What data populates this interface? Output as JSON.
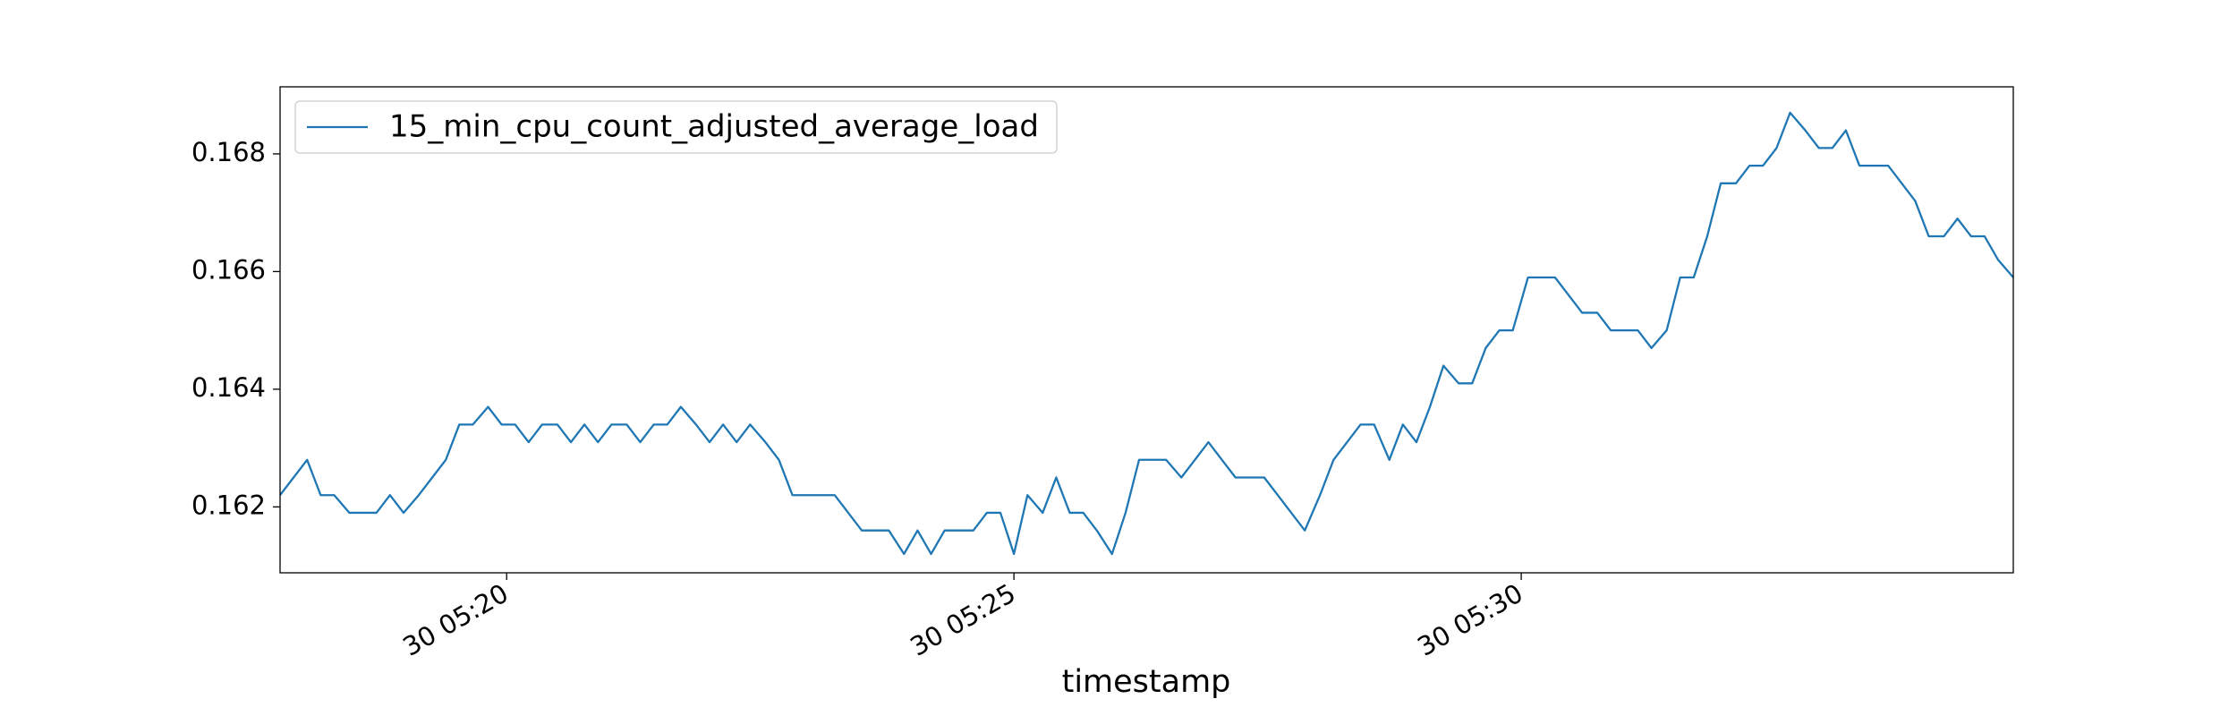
{
  "chart_data": {
    "type": "line",
    "x_label": "timestamp",
    "x": [
      "30 05:17:46",
      "30 05:17:54",
      "30 05:18:02",
      "30 05:18:10",
      "30 05:18:18",
      "30 05:18:27",
      "30 05:18:35",
      "30 05:18:43",
      "30 05:18:51",
      "30 05:18:59",
      "30 05:19:08",
      "30 05:19:16",
      "30 05:19:24",
      "30 05:19:32",
      "30 05:19:40",
      "30 05:19:49",
      "30 05:19:57",
      "30 05:20:05",
      "30 05:20:13",
      "30 05:20:21",
      "30 05:20:30",
      "30 05:20:38",
      "30 05:20:46",
      "30 05:20:54",
      "30 05:21:02",
      "30 05:21:11",
      "30 05:21:19",
      "30 05:21:27",
      "30 05:21:35",
      "30 05:21:43",
      "30 05:21:52",
      "30 05:22:00",
      "30 05:22:08",
      "30 05:22:16",
      "30 05:22:24",
      "30 05:22:33",
      "30 05:22:41",
      "30 05:22:49",
      "30 05:22:57",
      "30 05:23:05",
      "30 05:23:14",
      "30 05:23:22",
      "30 05:23:30",
      "30 05:23:38",
      "30 05:23:46",
      "30 05:23:55",
      "30 05:24:03",
      "30 05:24:11",
      "30 05:24:19",
      "30 05:24:27",
      "30 05:24:36",
      "30 05:24:44",
      "30 05:24:52",
      "30 05:25:00",
      "30 05:25:08",
      "30 05:25:17",
      "30 05:25:25",
      "30 05:25:33",
      "30 05:25:41",
      "30 05:25:49",
      "30 05:25:58",
      "30 05:26:06",
      "30 05:26:14",
      "30 05:26:22",
      "30 05:26:30",
      "30 05:26:39",
      "30 05:26:47",
      "30 05:26:55",
      "30 05:27:03",
      "30 05:27:11",
      "30 05:27:20",
      "30 05:27:28",
      "30 05:27:36",
      "30 05:27:44",
      "30 05:27:52",
      "30 05:28:01",
      "30 05:28:09",
      "30 05:28:17",
      "30 05:28:25",
      "30 05:28:33",
      "30 05:28:42",
      "30 05:28:50",
      "30 05:28:58",
      "30 05:29:06",
      "30 05:29:14",
      "30 05:29:23",
      "30 05:29:31",
      "30 05:29:39",
      "30 05:29:47",
      "30 05:29:55",
      "30 05:30:04",
      "30 05:30:12",
      "30 05:30:20",
      "30 05:30:28",
      "30 05:30:36",
      "30 05:30:45",
      "30 05:30:53",
      "30 05:31:01",
      "30 05:31:09",
      "30 05:31:17",
      "30 05:31:26",
      "30 05:31:34",
      "30 05:31:42",
      "30 05:31:50",
      "30 05:31:58",
      "30 05:32:07",
      "30 05:32:15",
      "30 05:32:23",
      "30 05:32:31",
      "30 05:32:39",
      "30 05:32:48",
      "30 05:32:56",
      "30 05:33:04",
      "30 05:33:12",
      "30 05:33:20",
      "30 05:33:29",
      "30 05:33:37",
      "30 05:33:45",
      "30 05:33:53",
      "30 05:34:01",
      "30 05:34:10",
      "30 05:34:18",
      "30 05:34:26",
      "30 05:34:34",
      "30 05:34:42",
      "30 05:34:51"
    ],
    "series": [
      {
        "name": "15_min_cpu_count_adjusted_average_load",
        "color": "#1f77b4",
        "values": [
          0.1622,
          0.1625,
          0.1628,
          0.1622,
          0.1622,
          0.1619,
          0.1619,
          0.1619,
          0.1622,
          0.1619,
          0.1622,
          0.1625,
          0.1628,
          0.1634,
          0.1634,
          0.1637,
          0.1634,
          0.1634,
          0.1631,
          0.1634,
          0.1634,
          0.1631,
          0.1634,
          0.1631,
          0.1634,
          0.1634,
          0.1631,
          0.1634,
          0.1634,
          0.1637,
          0.1634,
          0.1631,
          0.1634,
          0.1631,
          0.1634,
          0.1631,
          0.1628,
          0.1622,
          0.1622,
          0.1622,
          0.1622,
          0.1619,
          0.1616,
          0.1616,
          0.1616,
          0.1612,
          0.1616,
          0.1612,
          0.1616,
          0.1616,
          0.1616,
          0.1619,
          0.1619,
          0.1612,
          0.1622,
          0.1619,
          0.1625,
          0.1619,
          0.1619,
          0.1616,
          0.1612,
          0.1619,
          0.1628,
          0.1628,
          0.1628,
          0.1625,
          0.1628,
          0.1631,
          0.1628,
          0.1625,
          0.1625,
          0.1625,
          0.1622,
          0.1619,
          0.1616,
          0.1622,
          0.1628,
          0.1631,
          0.1634,
          0.1634,
          0.1628,
          0.1634,
          0.1631,
          0.1637,
          0.1644,
          0.1641,
          0.1641,
          0.1647,
          0.165,
          0.165,
          0.1659,
          0.1659,
          0.1659,
          0.1656,
          0.1653,
          0.1653,
          0.165,
          0.165,
          0.165,
          0.1647,
          0.165,
          0.1659,
          0.1659,
          0.1666,
          0.1675,
          0.1675,
          0.1678,
          0.1678,
          0.1681,
          0.1687,
          0.1684,
          0.1681,
          0.1681,
          0.1684,
          0.1678,
          0.1678,
          0.1678,
          0.1675,
          0.1672,
          0.1666,
          0.1666,
          0.1669,
          0.1666,
          0.1666,
          0.1662,
          0.1659
        ]
      }
    ],
    "xlim": [
      "30 05:17:46",
      "30 05:34:51"
    ],
    "xticks": [
      {
        "value": "30 05:20:00",
        "label": "30 05:20"
      },
      {
        "value": "30 05:25:00",
        "label": "30 05:25"
      },
      {
        "value": "30 05:30:00",
        "label": "30 05:30"
      }
    ],
    "ylim": [
      0.16088,
      0.16914
    ],
    "yticks": [
      0.162,
      0.164,
      0.166,
      0.168
    ],
    "grid": false,
    "legend": "upper left"
  }
}
